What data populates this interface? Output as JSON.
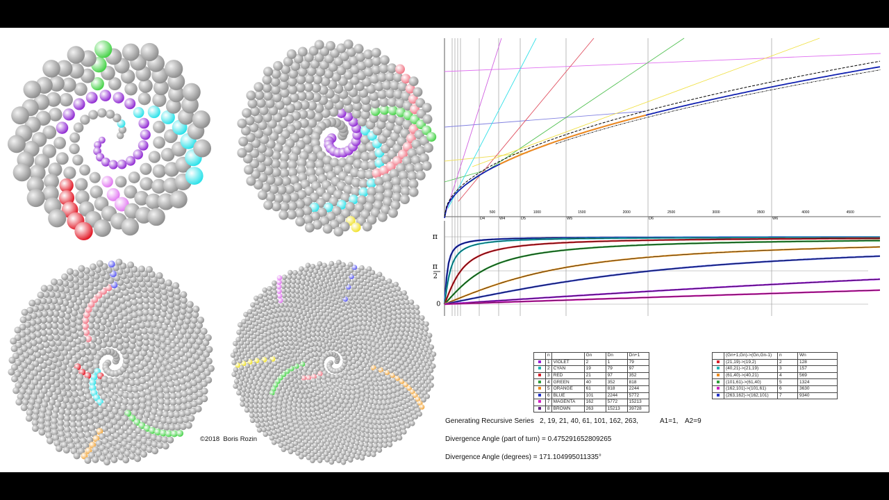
{
  "copyright": "©2018  Boris Rozin",
  "top_plot": {
    "x_ticks": [
      "500",
      "1000",
      "1500",
      "2000",
      "2500",
      "3000",
      "3500",
      "4000",
      "4500"
    ],
    "markers": [
      "D4",
      "W4",
      "D5",
      "W5",
      "D6",
      "W6"
    ]
  },
  "bottom_plot": {
    "y_top": "π",
    "y_mid": {
      "numerator": "π",
      "denominator": "2"
    },
    "y_zero": "0"
  },
  "table1": {
    "header": [
      "n",
      "Gn",
      "Dn",
      "Dn+1"
    ],
    "rows": [
      {
        "color": "#9a1fd6",
        "n": "1",
        "name": "VIOLET",
        "gn": "2",
        "dn": "1",
        "dn1": "79"
      },
      {
        "color": "#1fb5b5",
        "n": "2",
        "name": "CYAN",
        "gn": "19",
        "dn": "79",
        "dn1": "97"
      },
      {
        "color": "#d8202a",
        "n": "3",
        "name": "RED",
        "gn": "21",
        "dn": "97",
        "dn1": "352"
      },
      {
        "color": "#2e9e3a",
        "n": "4",
        "name": "GREEN",
        "gn": "40",
        "dn": "352",
        "dn1": "818"
      },
      {
        "color": "#f08a1c",
        "n": "5",
        "name": "ORANGE",
        "gn": "61",
        "dn": "818",
        "dn1": "2244"
      },
      {
        "color": "#2030c8",
        "n": "6",
        "name": "BLUE",
        "gn": "101",
        "dn": "2244",
        "dn1": "5772"
      },
      {
        "color": "#d020c0",
        "n": "7",
        "name": "MAGENTA",
        "gn": "162",
        "dn": "5772",
        "dn1": "15213"
      },
      {
        "color": "#602080",
        "n": "8",
        "name": "BROWN",
        "gn": "263",
        "dn": "15213",
        "dn1": "39728"
      }
    ]
  },
  "table2": {
    "header": [
      "(Gn+1,Gn)->(Gn,Gn-1)",
      "n",
      "Wn"
    ],
    "rows": [
      {
        "color": "#d8202a",
        "pair": "(21,19)->(19,2)",
        "n": "2",
        "wn": "128"
      },
      {
        "color": "#1fb5b5",
        "pair": "(40,21)->(21,19)",
        "n": "3",
        "wn": "157"
      },
      {
        "color": "#f08a1c",
        "pair": "(61,40)->(40,21)",
        "n": "4",
        "wn": "569"
      },
      {
        "color": "#2e9e3a",
        "pair": "(101,61)->(61,40)",
        "n": "5",
        "wn": "1324"
      },
      {
        "color": "#d020c0",
        "pair": "(162,101)->(101,61)",
        "n": "6",
        "wn": "3630"
      },
      {
        "color": "#2030c8",
        "pair": "(263,162)->(162,101)",
        "n": "7",
        "wn": "9340"
      }
    ]
  },
  "info": {
    "series": "Generating Recursive Series   2, 19, 21, 40, 61, 101, 162, 263,",
    "a1": "A1=1,",
    "a2": "A2=9",
    "divergence_turn": "Divergence Angle (part of turn) = 0.475291652809265",
    "divergence_deg": "Divergence Angle (degrees) = 171.104995011335°"
  }
}
